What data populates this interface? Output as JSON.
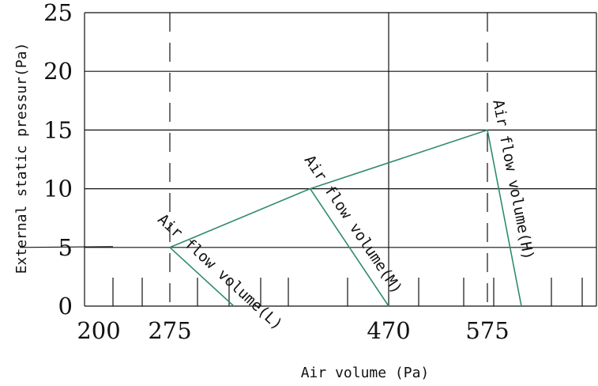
{
  "chart_data": {
    "type": "line",
    "xlabel": "Air volume (Pa)",
    "ylabel": "External static pressur(Pa)",
    "y_ticks": [
      "0",
      "5",
      "10",
      "15",
      "20",
      "25"
    ],
    "x_ticks": [
      {
        "value": 200,
        "label": "200"
      },
      {
        "value": 275,
        "label": "275"
      },
      {
        "value": 470,
        "label": "470"
      },
      {
        "value": 575,
        "label": "575"
      }
    ],
    "ylim": [
      0,
      25
    ],
    "xlim": [
      200,
      575
    ],
    "grid": "horizontal",
    "series": [
      {
        "label": "Air flow volume(L)",
        "x": [
          275,
          332
        ],
        "y": [
          5,
          0
        ]
      },
      {
        "label": "Air flow volume(M)",
        "x": [
          400,
          470
        ],
        "y": [
          10,
          0
        ]
      },
      {
        "label": "Air flow volume(H)",
        "x": [
          575,
          640
        ],
        "y": [
          15,
          0
        ]
      }
    ],
    "envelope": {
      "x": [
        275,
        400,
        575
      ],
      "y": [
        5,
        10,
        15
      ]
    },
    "reference_lines_x": [
      275,
      575
    ],
    "solid_line_x": 470
  }
}
